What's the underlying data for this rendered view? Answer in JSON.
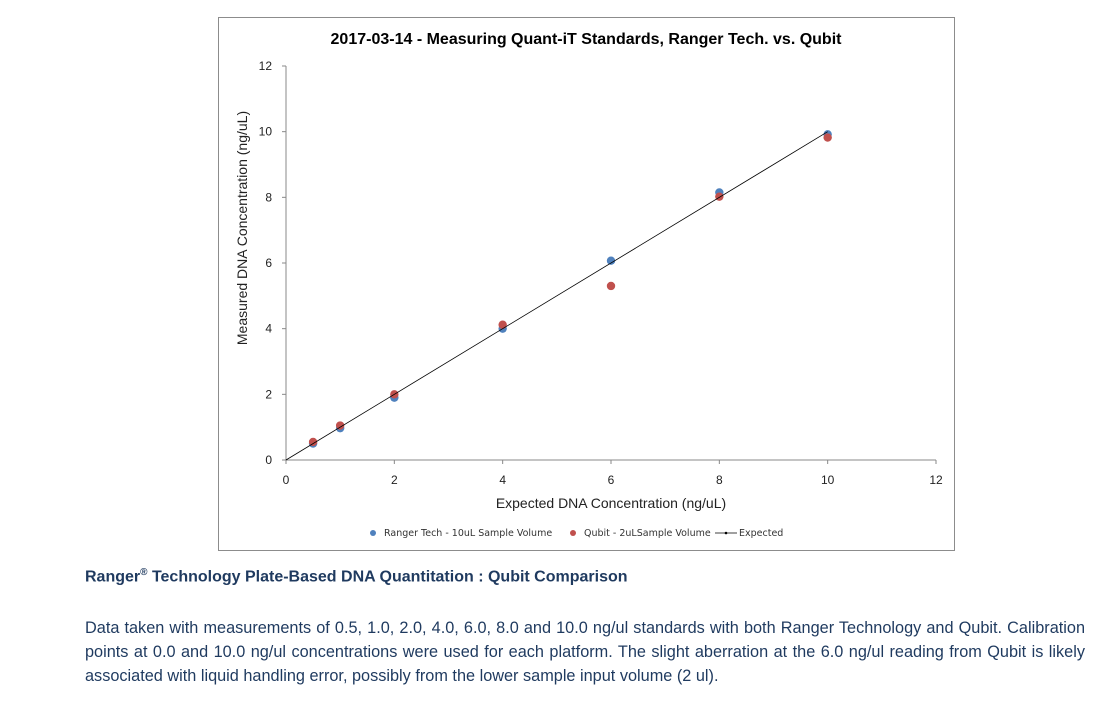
{
  "caption": {
    "title_brand": "Ranger",
    "title_mark": "®",
    "title_rest": " Technology Plate-Based DNA Quantitation : Qubit Comparison",
    "body": "Data taken with measurements of 0.5, 1.0, 2.0, 4.0, 6.0, 8.0 and 10.0 ng/ul standards with both Ranger Technology and Qubit. Calibration points at 0.0 and 10.0 ng/ul concentrations were used for each platform. The slight aberration at the 6.0 ng/ul reading from Qubit is likely associated with liquid handling error, possibly from the lower sample input volume (2 ul)."
  },
  "chart_data": {
    "type": "scatter",
    "title": "2017-03-14 - Measuring Quant-iT Standards, Ranger Tech. vs. Qubit",
    "xlabel": "Expected DNA Concentration (ng/uL)",
    "ylabel": "Measured DNA Concentration (ng/uL)",
    "xlim": [
      0,
      12
    ],
    "ylim": [
      0,
      12
    ],
    "xticks": [
      "0",
      "2",
      "4",
      "6",
      "8",
      "10",
      "12"
    ],
    "yticks": [
      "0",
      "2",
      "4",
      "6",
      "8",
      "10",
      "12"
    ],
    "grid": false,
    "legend_position": "bottom",
    "series": [
      {
        "name": "Ranger Tech - 10uL Sample Volume",
        "color": "#4f81bd",
        "marker": "circle",
        "x": [
          0.5,
          1.0,
          2.0,
          4.0,
          6.0,
          8.0,
          10.0
        ],
        "y": [
          0.5,
          0.97,
          1.9,
          4.0,
          6.07,
          8.15,
          9.92
        ]
      },
      {
        "name": "Qubit - 2uLSample Volume",
        "color": "#c0504d",
        "marker": "circle",
        "x": [
          0.5,
          1.0,
          2.0,
          4.0,
          6.0,
          8.0,
          10.0
        ],
        "y": [
          0.55,
          1.05,
          2.0,
          4.12,
          5.3,
          8.02,
          9.82
        ]
      },
      {
        "name": "Expected",
        "color": "#000000",
        "marker": "line",
        "x": [
          0,
          10
        ],
        "y": [
          0,
          10
        ]
      }
    ]
  }
}
